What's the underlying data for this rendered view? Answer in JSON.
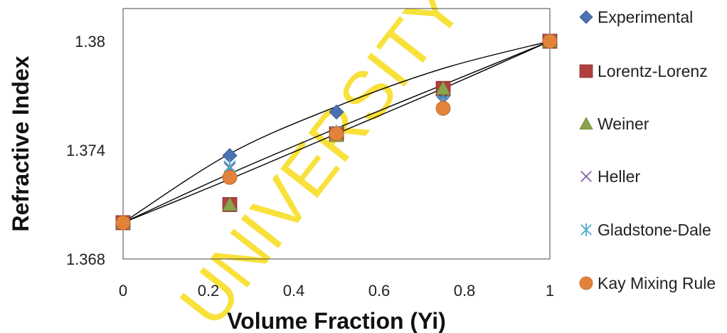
{
  "watermark": "UNIVERSITY OF IBADAN",
  "chart_data": {
    "type": "scatter",
    "title": "",
    "xlabel": "Volume Fraction (Yi)",
    "ylabel": "Refractive Index",
    "xlim": [
      0,
      1
    ],
    "ylim": [
      1.368,
      1.3818
    ],
    "x_ticks": [
      "0",
      "0.2",
      "0.4",
      "0.6",
      "0.8",
      "1"
    ],
    "y_ticks": [
      "1.368",
      "1.374",
      "1.38"
    ],
    "grid": false,
    "legend_position": "right",
    "series": [
      {
        "name": "Experimental",
        "marker": "diamond",
        "color": "#4a72b0",
        "x": [
          0,
          0.25,
          0.5,
          0.75,
          1
        ],
        "y": [
          1.37,
          1.3737,
          1.3761,
          1.377,
          1.38
        ]
      },
      {
        "name": "Lorentz-Lorenz",
        "marker": "square",
        "color": "#b0403e",
        "x": [
          0,
          0.25,
          0.5,
          0.75,
          1
        ],
        "y": [
          1.37,
          1.371,
          1.3749,
          1.3774,
          1.38
        ]
      },
      {
        "name": "Weiner",
        "marker": "triangle",
        "color": "#8aa34a",
        "x": [
          0,
          0.25,
          0.5,
          0.75,
          1
        ],
        "y": [
          1.37,
          1.371,
          1.3748,
          1.3774,
          1.38
        ]
      },
      {
        "name": "Heller",
        "marker": "cross",
        "color": "#8064a2",
        "x": [
          0,
          0.25,
          0.5,
          0.75,
          1
        ],
        "y": [
          1.37,
          1.373,
          1.375,
          1.3766,
          1.38
        ]
      },
      {
        "name": "Gladstone-Dale",
        "marker": "asterisk",
        "color": "#4bacc6",
        "x": [
          0,
          0.25,
          0.5,
          0.75,
          1
        ],
        "y": [
          1.37,
          1.3731,
          1.375,
          1.3767,
          1.38
        ]
      },
      {
        "name": "Kay Mixing Rule",
        "marker": "circle",
        "color": "#e3823a",
        "x": [
          0,
          0.25,
          0.5,
          0.75,
          1
        ],
        "y": [
          1.37,
          1.3725,
          1.3749,
          1.3763,
          1.38
        ]
      }
    ],
    "trend_lines": [
      {
        "color": "#000000",
        "x": [
          0,
          0.25,
          0.5,
          0.75,
          1
        ],
        "y": [
          1.37,
          1.3738,
          1.3764,
          1.3785,
          1.38
        ]
      },
      {
        "color": "#000000",
        "x": [
          0,
          0.25,
          0.5,
          0.75,
          1
        ],
        "y": [
          1.37,
          1.3727,
          1.3752,
          1.3776,
          1.38
        ]
      },
      {
        "color": "#000000",
        "x": [
          0,
          0.25,
          0.5,
          0.75,
          1
        ],
        "y": [
          1.37,
          1.3724,
          1.3749,
          1.3774,
          1.38
        ]
      }
    ]
  }
}
